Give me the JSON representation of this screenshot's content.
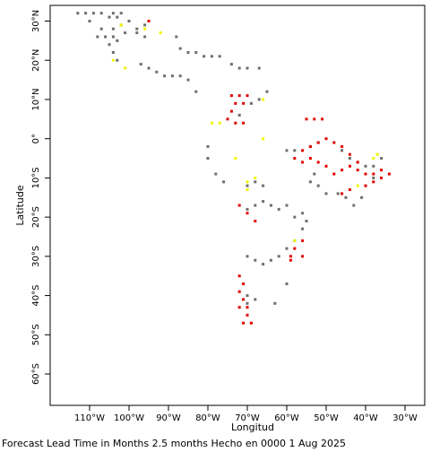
{
  "chart_data": {
    "type": "scatter",
    "title": "",
    "xlabel": "Longitud",
    "ylabel": "Latitude",
    "xlim": [
      -120,
      -25
    ],
    "ylim": [
      -68,
      34
    ],
    "grid": false,
    "x_ticks": [
      {
        "value": -110,
        "label": "110°W"
      },
      {
        "value": -100,
        "label": "100°W"
      },
      {
        "value": -90,
        "label": "90°W"
      },
      {
        "value": -80,
        "label": "80°W"
      },
      {
        "value": -70,
        "label": "70°W"
      },
      {
        "value": -60,
        "label": "60°W"
      },
      {
        "value": -50,
        "label": "50°W"
      },
      {
        "value": -40,
        "label": "40°W"
      },
      {
        "value": -30,
        "label": "30°W"
      }
    ],
    "y_ticks": [
      {
        "value": 30,
        "label": "30°N"
      },
      {
        "value": 20,
        "label": "20°N"
      },
      {
        "value": 10,
        "label": "10°N"
      },
      {
        "value": 0,
        "label": "0°"
      },
      {
        "value": -10,
        "label": "10°S"
      },
      {
        "value": -20,
        "label": "20°S"
      },
      {
        "value": -30,
        "label": "30°S"
      },
      {
        "value": -40,
        "label": "40°S"
      },
      {
        "value": -50,
        "label": "50°S"
      },
      {
        "value": -60,
        "label": "60°S"
      }
    ],
    "colors": {
      "gray": "#6e6e6e",
      "red": "#e00000",
      "yellow": "#f5f500"
    },
    "series": [
      {
        "color": "gray",
        "points": [
          [
            -113,
            32
          ],
          [
            -111,
            32
          ],
          [
            -109,
            32
          ],
          [
            -107,
            32
          ],
          [
            -104,
            32
          ],
          [
            -102,
            32
          ],
          [
            -105,
            31
          ],
          [
            -103,
            31
          ],
          [
            -100,
            30
          ],
          [
            -96,
            29
          ],
          [
            -98,
            28
          ],
          [
            -102,
            29
          ],
          [
            -104,
            28
          ],
          [
            -107,
            28
          ],
          [
            -110,
            30
          ],
          [
            -108,
            26
          ],
          [
            -106,
            26
          ],
          [
            -104,
            26
          ],
          [
            -101,
            27
          ],
          [
            -98,
            27
          ],
          [
            -96,
            26
          ],
          [
            -103,
            25
          ],
          [
            -105,
            24
          ],
          [
            -104,
            22
          ],
          [
            -103,
            20
          ],
          [
            -101,
            18
          ],
          [
            -97,
            19
          ],
          [
            -95,
            18
          ],
          [
            -93,
            17
          ],
          [
            -91,
            16
          ],
          [
            -89,
            16
          ],
          [
            -87,
            16
          ],
          [
            -85,
            15
          ],
          [
            -83,
            12
          ],
          [
            -88,
            26
          ],
          [
            -87,
            23
          ],
          [
            -85,
            22
          ],
          [
            -83,
            22
          ],
          [
            -81,
            21
          ],
          [
            -79,
            21
          ],
          [
            -77,
            21
          ],
          [
            -74,
            19
          ],
          [
            -72,
            18
          ],
          [
            -70,
            18
          ],
          [
            -67,
            18
          ],
          [
            -69,
            9
          ],
          [
            -67,
            10
          ],
          [
            -65,
            12
          ],
          [
            -72,
            6
          ],
          [
            -80,
            -2
          ],
          [
            -80,
            -5
          ],
          [
            -78,
            -9
          ],
          [
            -76,
            -11
          ],
          [
            -70,
            -12
          ],
          [
            -68,
            -11
          ],
          [
            -66,
            -12
          ],
          [
            -70,
            -18
          ],
          [
            -68,
            -17
          ],
          [
            -66,
            -16
          ],
          [
            -64,
            -17
          ],
          [
            -62,
            -18
          ],
          [
            -60,
            -17
          ],
          [
            -58,
            -20
          ],
          [
            -56,
            -19
          ],
          [
            -55,
            -21
          ],
          [
            -60,
            -3
          ],
          [
            -58,
            -3
          ],
          [
            -54,
            -2
          ],
          [
            -52,
            -1
          ],
          [
            -46,
            -3
          ],
          [
            -44,
            -5
          ],
          [
            -42,
            -6
          ],
          [
            -40,
            -7
          ],
          [
            -38,
            -7
          ],
          [
            -36,
            -5
          ],
          [
            -38,
            -10
          ],
          [
            -40,
            -12
          ],
          [
            -41,
            -15
          ],
          [
            -43,
            -17
          ],
          [
            -45,
            -15
          ],
          [
            -47,
            -14
          ],
          [
            -50,
            -14
          ],
          [
            -52,
            -12
          ],
          [
            -54,
            -11
          ],
          [
            -53,
            -9
          ],
          [
            -56,
            -23
          ],
          [
            -58,
            -26
          ],
          [
            -60,
            -28
          ],
          [
            -62,
            -30
          ],
          [
            -64,
            -31
          ],
          [
            -66,
            -32
          ],
          [
            -68,
            -31
          ],
          [
            -70,
            -30
          ],
          [
            -70,
            -40
          ],
          [
            -70,
            -42
          ],
          [
            -68,
            -41
          ],
          [
            -60,
            -37
          ],
          [
            -63,
            -42
          ]
        ]
      },
      {
        "color": "red",
        "points": [
          [
            -95,
            30
          ],
          [
            -74,
            11
          ],
          [
            -72,
            11
          ],
          [
            -70,
            11
          ],
          [
            -73,
            9
          ],
          [
            -71,
            9
          ],
          [
            -74,
            7
          ],
          [
            -75,
            5
          ],
          [
            -73,
            4
          ],
          [
            -71,
            4
          ],
          [
            -55,
            5
          ],
          [
            -53,
            5
          ],
          [
            -51,
            5
          ],
          [
            -50,
            0
          ],
          [
            -52,
            -1
          ],
          [
            -54,
            -2
          ],
          [
            -56,
            -3
          ],
          [
            -58,
            -5
          ],
          [
            -56,
            -6
          ],
          [
            -54,
            -5
          ],
          [
            -52,
            -6
          ],
          [
            -50,
            -7
          ],
          [
            -48,
            -9
          ],
          [
            -46,
            -8
          ],
          [
            -44,
            -7
          ],
          [
            -42,
            -6
          ],
          [
            -44,
            -4
          ],
          [
            -46,
            -2
          ],
          [
            -48,
            -1
          ],
          [
            -42,
            -8
          ],
          [
            -40,
            -9
          ],
          [
            -38,
            -9
          ],
          [
            -36,
            -10
          ],
          [
            -34,
            -9
          ],
          [
            -36,
            -8
          ],
          [
            -38,
            -11
          ],
          [
            -40,
            -12
          ],
          [
            -44,
            -13
          ],
          [
            -46,
            -14
          ],
          [
            -72,
            -17
          ],
          [
            -70,
            -19
          ],
          [
            -68,
            -21
          ],
          [
            -59,
            -30
          ],
          [
            -58,
            -28
          ],
          [
            -56,
            -26
          ],
          [
            -56,
            -30
          ],
          [
            -59,
            -31
          ],
          [
            -72,
            -35
          ],
          [
            -71,
            -37
          ],
          [
            -72,
            -39
          ],
          [
            -71,
            -41
          ],
          [
            -72,
            -43
          ],
          [
            -70,
            -43
          ],
          [
            -70,
            -45
          ],
          [
            -69,
            -47
          ],
          [
            -71,
            -47
          ]
        ]
      },
      {
        "color": "yellow",
        "points": [
          [
            -102,
            29
          ],
          [
            -96,
            28
          ],
          [
            -92,
            27
          ],
          [
            -104,
            20
          ],
          [
            -101,
            18
          ],
          [
            -66,
            10
          ],
          [
            -79,
            4
          ],
          [
            -77,
            4
          ],
          [
            -66,
            0
          ],
          [
            -73,
            -5
          ],
          [
            -68,
            -10
          ],
          [
            -70,
            -11
          ],
          [
            -70,
            -13
          ],
          [
            -37,
            -4
          ],
          [
            -38,
            -5
          ],
          [
            -42,
            -12
          ],
          [
            -58,
            -26
          ]
        ]
      }
    ]
  },
  "footer": {
    "forecast_text": "Forecast Lead Time in Months 2.5 months Hecho en 0000 1 Aug 2025"
  }
}
